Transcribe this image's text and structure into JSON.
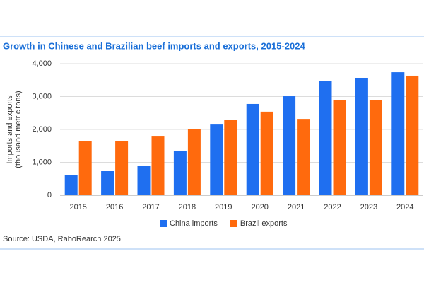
{
  "chart_data": {
    "type": "bar",
    "title": "Growth in Chinese and Brazilian beef imports and exports, 2015-2024",
    "ylabel": [
      "Imports and exports",
      "(thousand metric tons)"
    ],
    "categories": [
      "2015",
      "2016",
      "2017",
      "2018",
      "2019",
      "2020",
      "2021",
      "2022",
      "2023",
      "2024"
    ],
    "series": [
      {
        "name": "China imports",
        "color": "#1f6ff0",
        "values": [
          610,
          750,
          900,
          1355,
          2170,
          2775,
          3010,
          3480,
          3570,
          3740
        ]
      },
      {
        "name": "Brazil exports",
        "color": "#ff6a0d",
        "values": [
          1655,
          1635,
          1805,
          2020,
          2300,
          2540,
          2320,
          2900,
          2900,
          3635
        ]
      }
    ],
    "ylim": [
      0,
      4000
    ],
    "yticks": [
      0,
      {
        "value": 1000,
        "label": "1,000"
      },
      {
        "value": 2000,
        "label": "2,000"
      },
      {
        "value": 3000,
        "label": "3,000"
      },
      {
        "value": 4000,
        "label": "4,000"
      }
    ],
    "grid": true,
    "legend": "bottom",
    "source": "Source: USDA, RaboRearch 2025"
  }
}
